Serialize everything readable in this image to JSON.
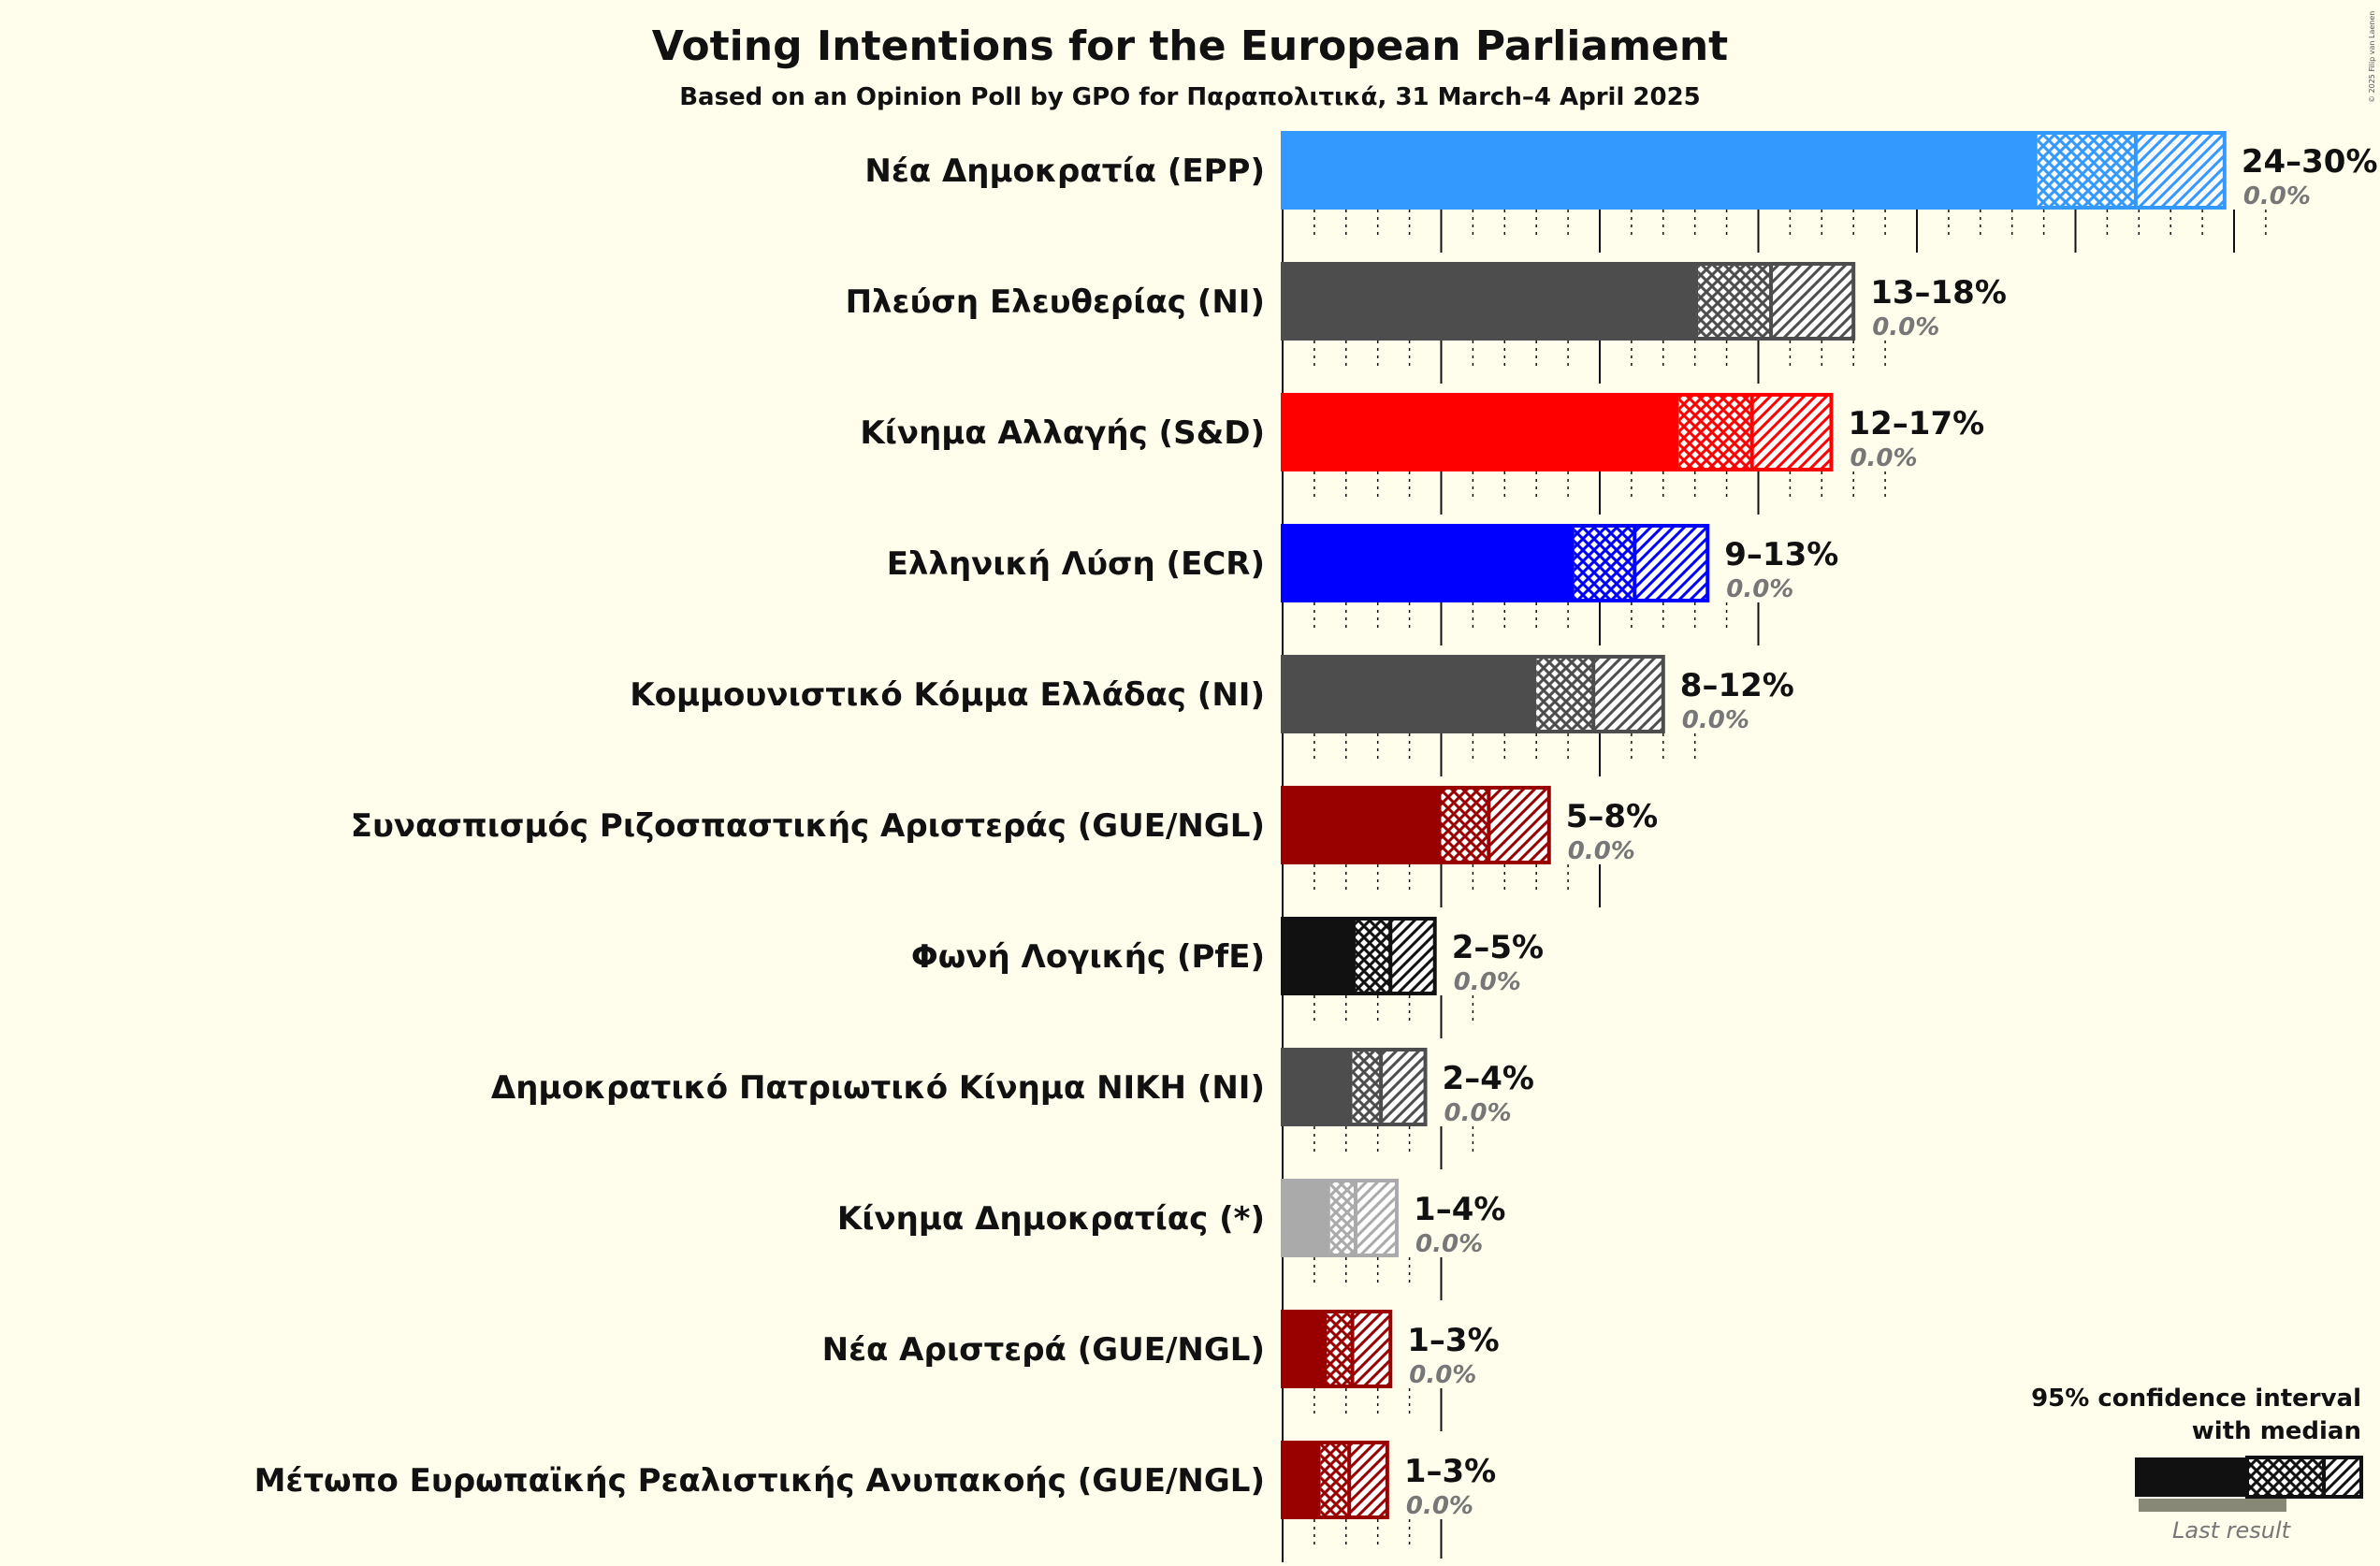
{
  "chart_data": {
    "type": "bar",
    "orientation": "horizontal",
    "title": "Voting Intentions for the European Parliament",
    "subtitle": "Based on an Opinion Poll by GPO for Παραπολιτικά, 31 March–4 April 2025",
    "xlim": [
      0,
      30
    ],
    "grid": true,
    "legend_placement": "bottom-right",
    "legend": {
      "title_line1": "95% confidence interval",
      "title_line2": "with median",
      "last_result": "Last result"
    },
    "copyright": "© 2025 Filip van Laenen",
    "parties": [
      {
        "name": "Νέα Δημοκρατία (EPP)",
        "low": 23.8,
        "median": 26.9,
        "high": 29.7,
        "range": "24–30%",
        "last": "0.0%",
        "color": "#3399ff"
      },
      {
        "name": "Πλεύση Ελευθερίας (NI)",
        "low": 13.1,
        "median": 15.4,
        "high": 18.0,
        "range": "13–18%",
        "last": "0.0%",
        "color": "#4d4d4d"
      },
      {
        "name": "Κίνημα Αλλαγής (S&D)",
        "low": 12.5,
        "median": 14.8,
        "high": 17.3,
        "range": "12–17%",
        "last": "0.0%",
        "color": "#ff0000"
      },
      {
        "name": "Ελληνική Λύση (ECR)",
        "low": 9.2,
        "median": 11.1,
        "high": 13.4,
        "range": "9–13%",
        "last": "0.0%",
        "color": "#0000ff"
      },
      {
        "name": "Κομμουνιστικό Κόμμα Ελλάδας (NI)",
        "low": 8.0,
        "median": 9.8,
        "high": 12.0,
        "range": "8–12%",
        "last": "0.0%",
        "color": "#4d4d4d"
      },
      {
        "name": "Συνασπισμός Ριζοσπαστικής Αριστεράς (GUE/NGL)",
        "low": 5.0,
        "median": 6.5,
        "high": 8.4,
        "range": "5–8%",
        "last": "0.0%",
        "color": "#990000"
      },
      {
        "name": "Φωνή Λογικής (PfE)",
        "low": 2.3,
        "median": 3.4,
        "high": 4.8,
        "range": "2–5%",
        "last": "0.0%",
        "color": "#111111"
      },
      {
        "name": "Δημοκρατικό Πατριωτικό Κίνημα ΝΙΚΗ (NI)",
        "low": 2.2,
        "median": 3.1,
        "high": 4.5,
        "range": "2–4%",
        "last": "0.0%",
        "color": "#4d4d4d"
      },
      {
        "name": "Κίνημα Δημοκρατίας (*)",
        "low": 1.5,
        "median": 2.3,
        "high": 3.6,
        "range": "1–4%",
        "last": "0.0%",
        "color": "#aaaaaa"
      },
      {
        "name": "Νέα Αριστερά (GUE/NGL)",
        "low": 1.4,
        "median": 2.2,
        "high": 3.4,
        "range": "1–3%",
        "last": "0.0%",
        "color": "#990000"
      },
      {
        "name": "Μέτωπο Ευρωπαϊκής Ρεαλιστικής Ανυπακοής (GUE/NGL)",
        "low": 1.2,
        "median": 2.1,
        "high": 3.3,
        "range": "1–3%",
        "last": "0.0%",
        "color": "#990000"
      }
    ]
  }
}
